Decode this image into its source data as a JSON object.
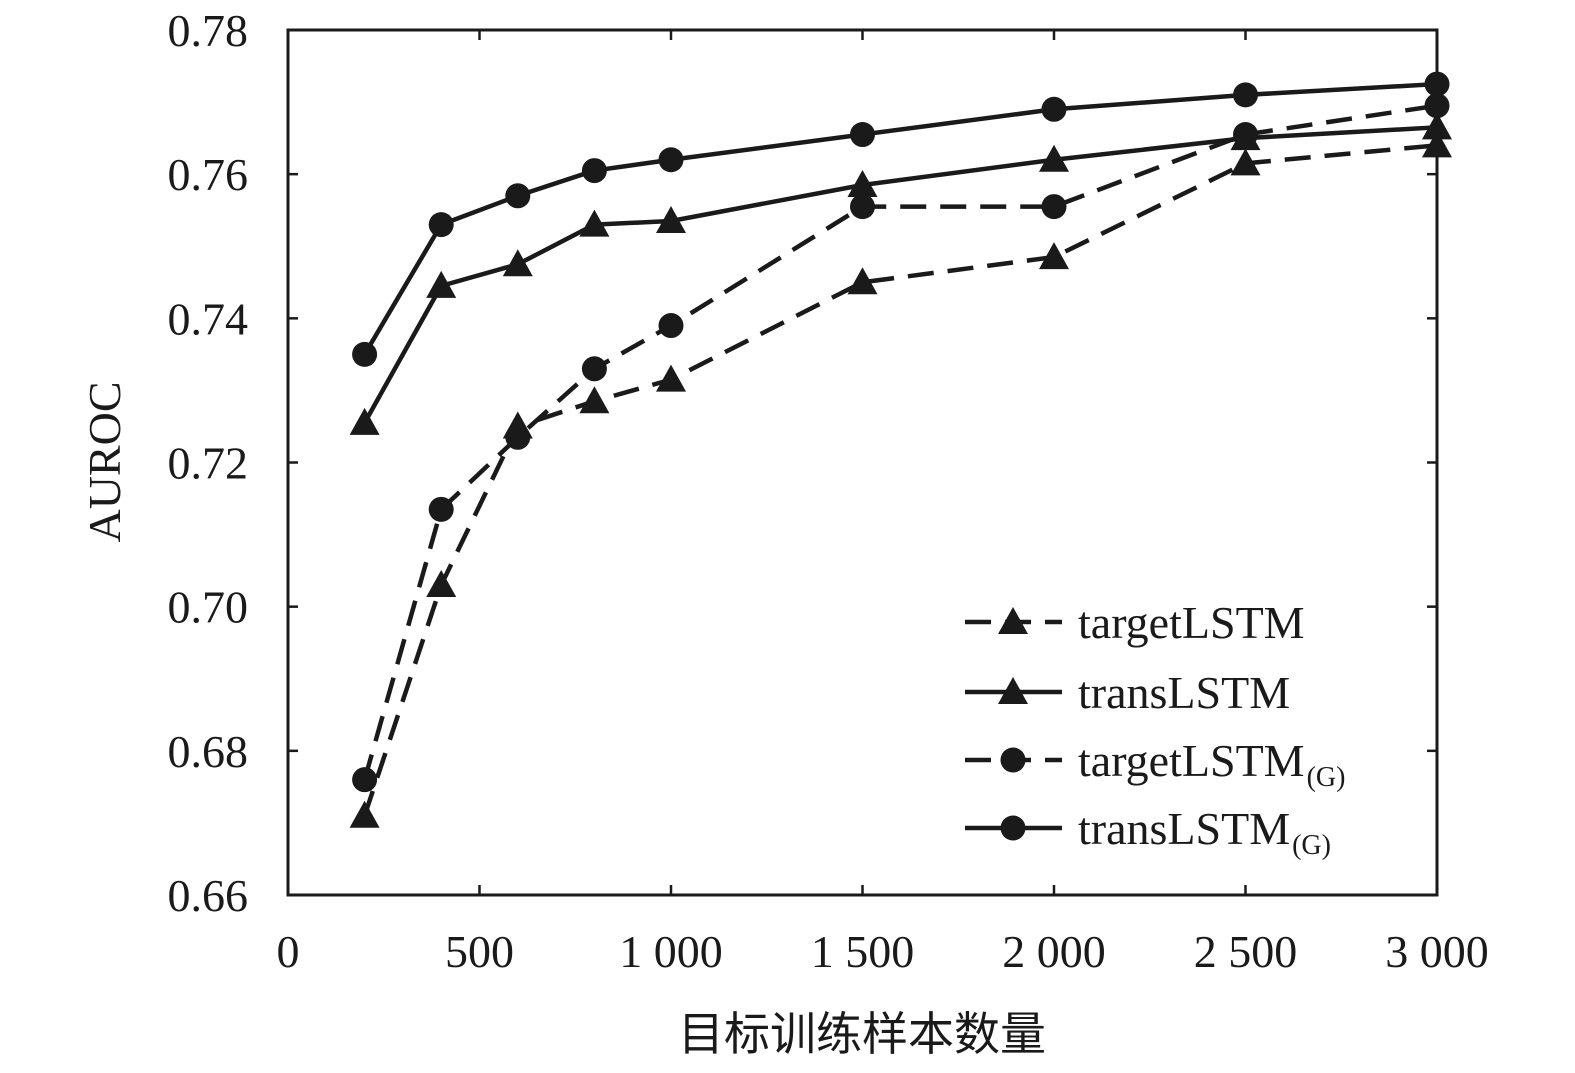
{
  "chart_data": {
    "type": "line",
    "title": "",
    "xlabel": "目标训练样本数量",
    "ylabel": "AUROC",
    "xlim": [
      0,
      3000
    ],
    "ylim": [
      0.66,
      0.78
    ],
    "x_ticks": [
      0,
      500,
      1000,
      1500,
      2000,
      2500,
      3000
    ],
    "x_tick_labels": [
      "0",
      "500",
      "1 000",
      "1 500",
      "2 000",
      "2 500",
      "3 000"
    ],
    "y_ticks": [
      0.66,
      0.68,
      0.7,
      0.72,
      0.74,
      0.76,
      0.78
    ],
    "y_tick_labels": [
      "0.66",
      "0.68",
      "0.70",
      "0.72",
      "0.74",
      "0.76",
      "0.78"
    ],
    "grid": false,
    "legend_position": "lower-right",
    "x": [
      200,
      400,
      600,
      800,
      1000,
      1500,
      2000,
      2500,
      3000
    ],
    "series": [
      {
        "name": "targetLSTM",
        "name_sub": "",
        "line_style": "dashed",
        "marker": "triangle",
        "values": [
          0.671,
          0.703,
          0.725,
          0.7285,
          0.7315,
          0.745,
          0.7485,
          0.7615,
          0.764
        ]
      },
      {
        "name": "transLSTM",
        "name_sub": "",
        "line_style": "solid",
        "marker": "triangle",
        "values": [
          0.7255,
          0.7445,
          0.7475,
          0.753,
          0.7535,
          0.7585,
          0.762,
          0.765,
          0.7665
        ]
      },
      {
        "name": "targetLSTM",
        "name_sub": "(G)",
        "line_style": "dashed",
        "marker": "circle",
        "values": [
          0.676,
          0.7135,
          0.7235,
          0.733,
          0.739,
          0.7555,
          0.7555,
          0.7655,
          0.7695
        ]
      },
      {
        "name": "transLSTM",
        "name_sub": "(G)",
        "line_style": "solid",
        "marker": "circle",
        "values": [
          0.735,
          0.753,
          0.757,
          0.7605,
          0.762,
          0.7655,
          0.769,
          0.771,
          0.7725
        ]
      }
    ]
  }
}
